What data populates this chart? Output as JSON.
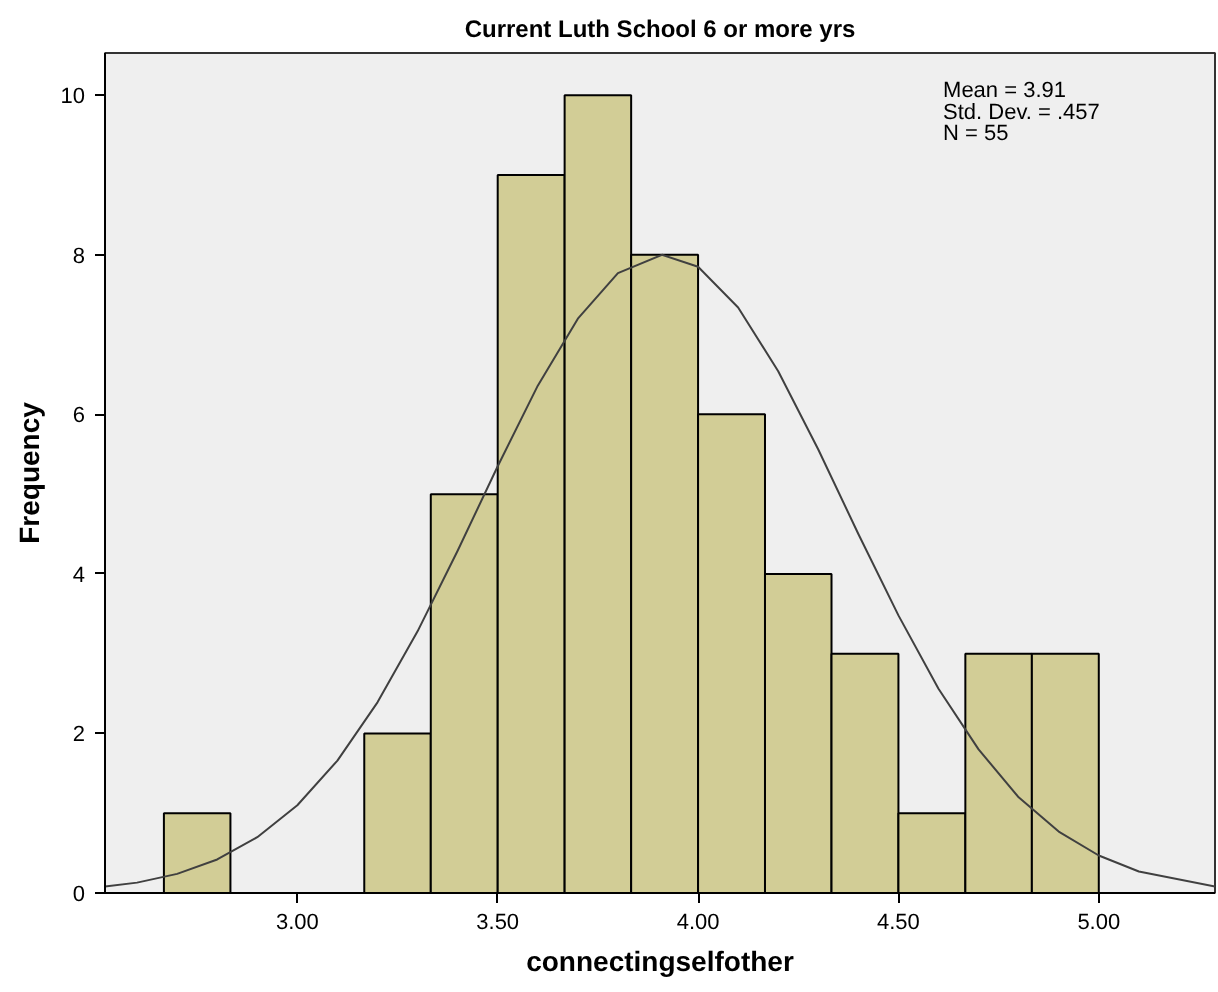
{
  "chart_data": {
    "type": "histogram",
    "title": "Current Luth School 6 or more yrs",
    "xlabel": "connectingselfother",
    "ylabel": "Frequency",
    "bins": [
      2.667,
      2.833,
      3.0,
      3.167,
      3.333,
      3.5,
      3.667,
      3.833,
      4.0,
      4.167,
      4.333,
      4.5,
      4.667,
      4.833,
      5.0
    ],
    "values": [
      1,
      0,
      0,
      2,
      5,
      9,
      10,
      8,
      6,
      4,
      3,
      1,
      3,
      3
    ],
    "color": "#d2cd96",
    "series": [
      {
        "type": "line",
        "color": "#404040",
        "x": [
          2.52,
          2.6,
          2.7,
          2.8,
          2.9,
          3.0,
          3.1,
          3.2,
          3.3,
          3.4,
          3.5,
          3.6,
          3.7,
          3.8,
          3.91,
          4.0,
          4.1,
          4.2,
          4.3,
          4.4,
          4.5,
          4.6,
          4.7,
          4.8,
          4.9,
          5.0,
          5.1,
          5.29
        ],
        "values": [
          0.08,
          0.13,
          0.24,
          0.42,
          0.7,
          1.1,
          1.66,
          2.39,
          3.28,
          4.29,
          5.35,
          6.36,
          7.2,
          7.77,
          8.0,
          7.85,
          7.34,
          6.54,
          5.56,
          4.5,
          3.48,
          2.56,
          1.8,
          1.2,
          0.77,
          0.47,
          0.27,
          0.08
        ]
      }
    ],
    "annotations": [
      "Mean = 3.91",
      "Std. Dev. = .457",
      "N = 55"
    ],
    "xlim": [
      2.52,
      5.29
    ],
    "ylim": [
      0,
      10.53
    ],
    "xticks": [
      {
        "value": 3.0,
        "label": "3.00"
      },
      {
        "value": 3.5,
        "label": "3.50"
      },
      {
        "value": 4.0,
        "label": "4.00"
      },
      {
        "value": 4.5,
        "label": "4.50"
      },
      {
        "value": 5.0,
        "label": "5.00"
      }
    ],
    "yticks": [
      0,
      2,
      4,
      6,
      8,
      10
    ],
    "grid": false
  }
}
